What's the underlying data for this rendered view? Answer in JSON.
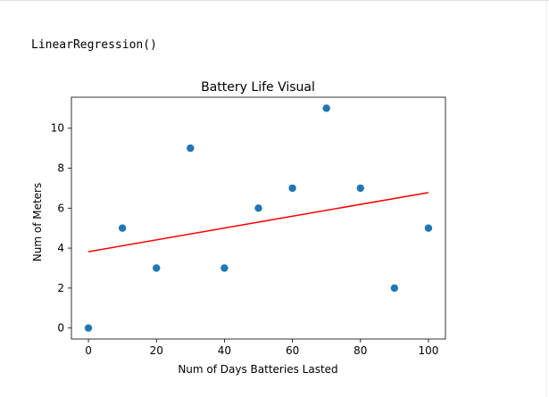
{
  "output": {
    "text": "LinearRegression()"
  },
  "colors": {
    "points": "#1f77b4",
    "line": "#ff0000"
  },
  "chart_data": {
    "type": "scatter",
    "title": "Battery Life Visual",
    "xlabel": "Num of Days Batteries Lasted",
    "ylabel": "Num of Meters",
    "xlim": [
      -5,
      105
    ],
    "ylim": [
      -0.55,
      11.55
    ],
    "xticks": [
      0,
      20,
      40,
      60,
      80,
      100
    ],
    "yticks": [
      0,
      2,
      4,
      6,
      8,
      10
    ],
    "grid": false,
    "x": [
      0,
      10,
      20,
      30,
      40,
      50,
      60,
      70,
      80,
      90,
      100
    ],
    "y": [
      0,
      5,
      3,
      9,
      3,
      6,
      7,
      11,
      7,
      2,
      5
    ],
    "regression_line": {
      "x": [
        0,
        100
      ],
      "y": [
        3.82,
        6.78
      ]
    }
  }
}
